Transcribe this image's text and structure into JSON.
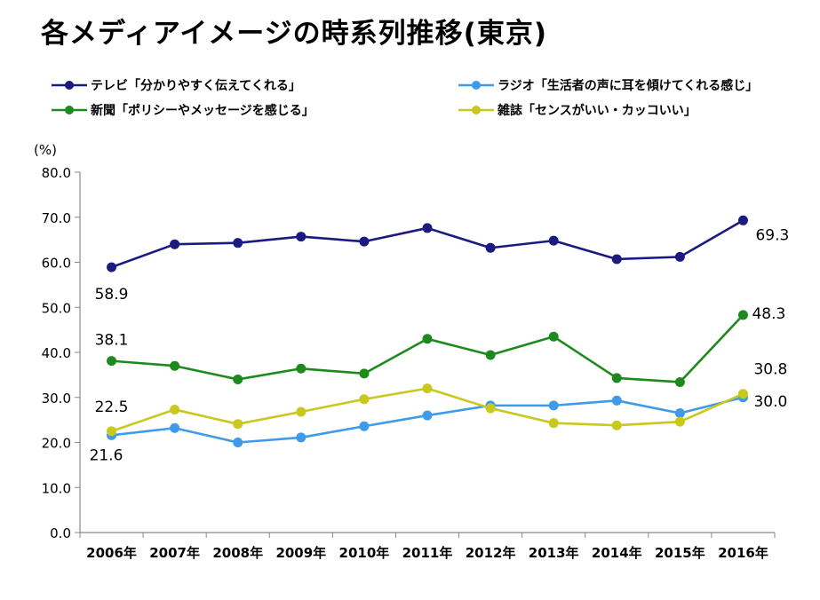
{
  "title": "各メディアイメージの時系列推移(東京)",
  "unit_label": "(%)",
  "chart_data": {
    "type": "line",
    "title": "各メディアイメージの時系列推移(東京)",
    "xlabel": "",
    "ylabel": "(%)",
    "ylim": [
      0,
      80
    ],
    "yticks": [
      "0.0",
      "10.0",
      "20.0",
      "30.0",
      "40.0",
      "50.0",
      "60.0",
      "70.0",
      "80.0"
    ],
    "grid": false,
    "legend": "top",
    "categories": [
      "2006年",
      "2007年",
      "2008年",
      "2009年",
      "2010年",
      "2011年",
      "2012年",
      "2013年",
      "2014年",
      "2015年",
      "2016年"
    ],
    "series": [
      {
        "name": "テレビ「分かりやすく伝えてくれる」",
        "color": "#1a1a80",
        "values": [
          58.9,
          64.0,
          64.3,
          65.7,
          64.6,
          67.6,
          63.2,
          64.8,
          60.7,
          61.2,
          69.3
        ],
        "labels": [
          {
            "index": 0,
            "text": "58.9"
          },
          {
            "index": 10,
            "text": "69.3"
          }
        ]
      },
      {
        "name": "ラジオ「生活者の声に耳を傾けてくれる感じ」",
        "color": "#3d9be9",
        "values": [
          21.6,
          23.2,
          20.0,
          21.1,
          23.6,
          26.0,
          28.2,
          28.2,
          29.3,
          26.5,
          30.0
        ],
        "labels": [
          {
            "index": 0,
            "text": "21.6"
          },
          {
            "index": 10,
            "text": "30.0"
          }
        ]
      },
      {
        "name": "新聞「ポリシーやメッセージを感じる」",
        "color": "#1e8a1e",
        "values": [
          38.1,
          37.0,
          34.0,
          36.4,
          35.3,
          43.0,
          39.4,
          43.5,
          34.3,
          33.4,
          48.3
        ],
        "labels": [
          {
            "index": 0,
            "text": "38.1"
          },
          {
            "index": 10,
            "text": "48.3"
          }
        ]
      },
      {
        "name": "雑誌「センスがいい・カッコいい」",
        "color": "#c8c81e",
        "values": [
          22.5,
          27.3,
          24.1,
          26.8,
          29.6,
          32.0,
          27.6,
          24.3,
          23.8,
          24.6,
          30.8
        ],
        "labels": [
          {
            "index": 0,
            "text": "22.5"
          },
          {
            "index": 10,
            "text": "30.8"
          }
        ]
      }
    ]
  }
}
